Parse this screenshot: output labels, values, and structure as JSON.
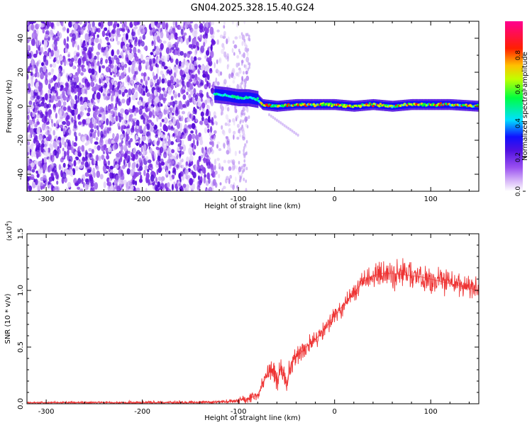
{
  "figure_title": "GN04.2025.328.15.40.G24",
  "colorbar": {
    "label": "Normalized spectral amplitude",
    "ticks": [
      "0.0",
      "0.2",
      "0.4",
      "0.6",
      "0.8"
    ],
    "tick_values": [
      0.0,
      0.2,
      0.4,
      0.6,
      0.8
    ],
    "range": [
      0,
      1
    ],
    "colors": [
      "#ffffff",
      "#b07cf0",
      "#6010e0",
      "#1010ff",
      "#00ffff",
      "#00ff00",
      "#ffff00",
      "#ff8000",
      "#ff0000",
      "#ff00a0"
    ]
  },
  "chart_data": [
    {
      "type": "heatmap",
      "title": "GN04.2025.328.15.40.G24",
      "xlabel": "Height of straight line (km)",
      "ylabel": "Frequency (Hz)",
      "xlim": [
        -320,
        150
      ],
      "ylim": [
        -50,
        50
      ],
      "x_ticks": [
        -300,
        -200,
        -100,
        0,
        100
      ],
      "x_tick_labels": [
        "-300",
        "-200",
        "-100",
        "0",
        "100"
      ],
      "y_ticks": [
        -40,
        -20,
        0,
        20,
        40
      ],
      "y_tick_labels": [
        "-40",
        "-20",
        "0",
        "20",
        "40"
      ],
      "features": {
        "noise_region_km": [
          -320,
          -125
        ],
        "sparse_noise_km": [
          -125,
          -90
        ],
        "signal_onset_km": -125,
        "signal_band_hz": [
          -4,
          10
        ],
        "signal_ridge": {
          "x": [
            -125,
            -110,
            -100,
            -90,
            -80,
            -75,
            -60,
            -40,
            -20,
            0,
            20,
            40,
            60,
            80,
            100,
            120,
            150
          ],
          "y": [
            7,
            6,
            5,
            5,
            4,
            1,
            0,
            1,
            1,
            1,
            0,
            1,
            0,
            1,
            1,
            1,
            0
          ]
        }
      }
    },
    {
      "type": "line",
      "xlabel": "Height of straight line (km)",
      "ylabel": "SNR (10 * v/v)",
      "scale_label": "(x10",
      "scale_exponent": "4",
      "scale_close": ")",
      "color": "#ee3333",
      "xlim": [
        -320,
        150
      ],
      "ylim": [
        0,
        1.5
      ],
      "x_ticks": [
        -300,
        -200,
        -100,
        0,
        100
      ],
      "x_tick_labels": [
        "-300",
        "-200",
        "-100",
        "0",
        "100"
      ],
      "y_ticks": [
        0,
        0.5,
        1.0,
        1.5
      ],
      "y_tick_labels": [
        "0.0",
        "0.5",
        "1.0",
        "1.5"
      ],
      "series": [
        {
          "name": "SNR",
          "x": [
            -320,
            -250,
            -150,
            -110,
            -100,
            -90,
            -80,
            -75,
            -70,
            -65,
            -60,
            -55,
            -50,
            -45,
            -40,
            -35,
            -30,
            -25,
            -20,
            -15,
            -10,
            -5,
            0,
            5,
            10,
            15,
            20,
            25,
            30,
            40,
            50,
            60,
            70,
            80,
            90,
            100,
            110,
            120,
            130,
            140,
            150
          ],
          "y": [
            0.01,
            0.01,
            0.01,
            0.02,
            0.03,
            0.04,
            0.08,
            0.17,
            0.26,
            0.3,
            0.2,
            0.33,
            0.18,
            0.36,
            0.42,
            0.45,
            0.5,
            0.53,
            0.57,
            0.61,
            0.66,
            0.72,
            0.78,
            0.83,
            0.88,
            0.93,
            0.98,
            1.03,
            1.08,
            1.13,
            1.15,
            1.15,
            1.14,
            1.13,
            1.12,
            1.1,
            1.08,
            1.06,
            1.04,
            1.02,
            1.0
          ]
        }
      ],
      "noise_amplitude": {
        "x": [
          -320,
          -110,
          -80,
          -60,
          -40,
          -20,
          0,
          20,
          40,
          60,
          100,
          150
        ],
        "amp": [
          0.01,
          0.02,
          0.06,
          0.12,
          0.12,
          0.1,
          0.08,
          0.1,
          0.14,
          0.16,
          0.14,
          0.1
        ]
      }
    }
  ]
}
